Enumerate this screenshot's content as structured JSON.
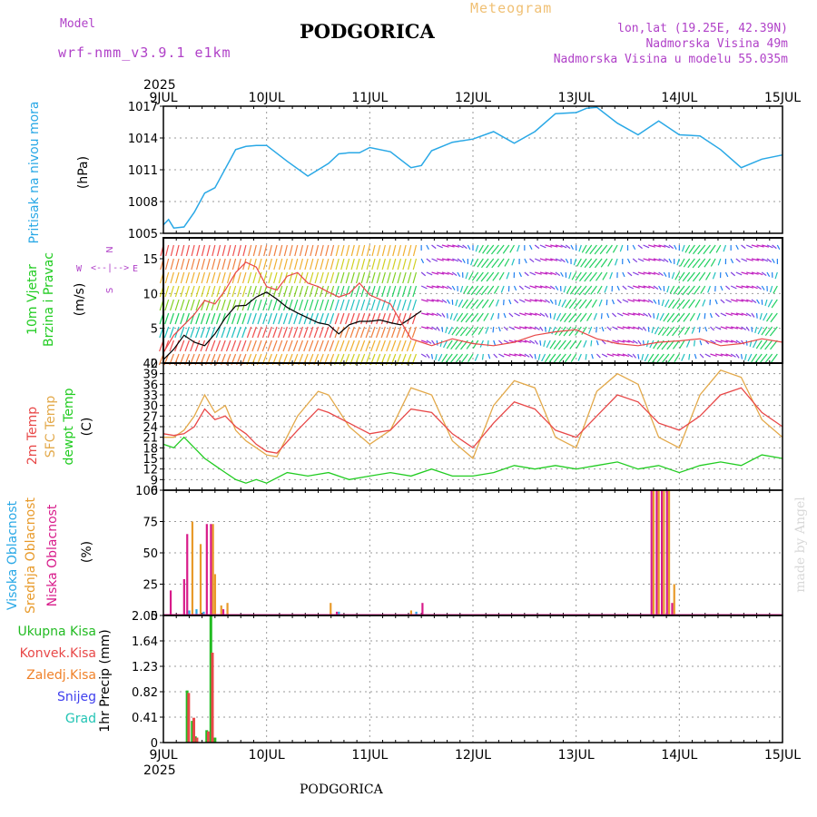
{
  "header": {
    "model_label": "Model",
    "model_name": "wrf-nmm_v3.9.1 e1km",
    "title": "PODGORICA",
    "subtitle": "Meteogram",
    "coords": "lon,lat (19.25E, 42.39N)",
    "elevation": "Nadmorska Visina 49m",
    "model_elevation": "Nadmorska Visina u modelu 55.035m",
    "footer_title": "PODGORICA",
    "credit": "made by Angel"
  },
  "colors": {
    "pressure": "#29a8e6",
    "wind_black": "#000000",
    "t2m": "#e84848",
    "tsfc": "#e3a94a",
    "dewpt": "#22cc22",
    "high_cloud": "#29a8e6",
    "mid_cloud": "#e89a2a",
    "low_cloud": "#d81b8a",
    "total_precip": "#22bb22",
    "conv_precip": "#e84848",
    "frozen_precip": "#f0822a",
    "snow": "#4040ee",
    "hail": "#22c4b4"
  },
  "time_axis": {
    "year": "2025",
    "labels": [
      "9JUL",
      "10JUL",
      "11JUL",
      "12JUL",
      "13JUL",
      "14JUL",
      "15JUL"
    ]
  },
  "chart_data": [
    {
      "type": "line",
      "panel": "pressure",
      "ylabel": "Pritisak na nivou mora",
      "unit": "(hPa)",
      "ylim": [
        1005,
        1017
      ],
      "yticks": [
        "1017",
        "1014",
        "1011",
        "1008",
        "1005"
      ],
      "grid": true,
      "series": [
        {
          "x": [
            0,
            0.05,
            0.1,
            0.2,
            0.3,
            0.4,
            0.5,
            0.6,
            0.7,
            0.8,
            0.9,
            1.0,
            1.2,
            1.4,
            1.6,
            1.7,
            1.8,
            1.9,
            2.0,
            2.2,
            2.4,
            2.5,
            2.6,
            2.8,
            3.0,
            3.2,
            3.4,
            3.6,
            3.8,
            4.0,
            4.1,
            4.2,
            4.4,
            4.6,
            4.8,
            5.0,
            5.2,
            5.4,
            5.6,
            5.8,
            6.0
          ],
          "values": [
            1005.8,
            1006.3,
            1005.5,
            1005.6,
            1007.0,
            1008.8,
            1009.3,
            1011.1,
            1012.9,
            1013.2,
            1013.3,
            1013.3,
            1011.8,
            1010.4,
            1011.6,
            1012.5,
            1012.6,
            1012.6,
            1013.1,
            1012.7,
            1011.2,
            1011.4,
            1012.8,
            1013.6,
            1013.9,
            1014.6,
            1013.5,
            1014.6,
            1016.3,
            1016.4,
            1016.8,
            1016.9,
            1015.4,
            1014.3,
            1015.6,
            1014.3,
            1014.2,
            1012.9,
            1011.2,
            1012.0,
            1012.4
          ]
        }
      ]
    },
    {
      "type": "line",
      "panel": "wind",
      "ylabel": "10m Vjetar",
      "ylabel2": "Brzina i Pravac",
      "unit": "(m/s)",
      "ylim": [
        0,
        18
      ],
      "yticks": [
        "15",
        "10",
        "5",
        "0"
      ],
      "compass": {
        "n": "N",
        "s": "S",
        "w": "W",
        "e": "E",
        "arrow": "<--|-->"
      },
      "grid": true,
      "series": [
        {
          "name": "speed",
          "x": [
            0,
            0.1,
            0.2,
            0.3,
            0.4,
            0.5,
            0.6,
            0.7,
            0.8,
            0.9,
            1.0,
            1.1,
            1.2,
            1.3,
            1.4,
            1.5,
            1.6,
            1.7,
            1.8,
            1.9,
            2.0,
            2.1,
            2.2,
            2.3,
            2.4,
            2.5
          ],
          "values": [
            0.5,
            2.0,
            4.0,
            3.0,
            2.5,
            4.2,
            6.5,
            8.2,
            8.3,
            9.5,
            10.2,
            9.2,
            8.0,
            7.2,
            6.5,
            5.8,
            5.5,
            4.2,
            5.5,
            6.0,
            6.0,
            6.2,
            5.8,
            5.5,
            6.5,
            7.5
          ]
        },
        {
          "name": "gust",
          "x": [
            0,
            0.1,
            0.2,
            0.3,
            0.4,
            0.5,
            0.6,
            0.7,
            0.8,
            0.9,
            1.0,
            1.1,
            1.2,
            1.3,
            1.4,
            1.5,
            1.6,
            1.7,
            1.8,
            1.9,
            2.0,
            2.2,
            2.4,
            2.5,
            2.6,
            2.8,
            3.0,
            3.2,
            3.4,
            3.6,
            3.8,
            4.0,
            4.2,
            4.4,
            4.6,
            4.8,
            5.0,
            5.2,
            5.4,
            5.6,
            5.8,
            6.0
          ],
          "values": [
            1.5,
            4.0,
            5.5,
            7.0,
            9.0,
            8.5,
            10.5,
            13.0,
            14.5,
            13.8,
            11.0,
            10.5,
            12.5,
            13.0,
            11.5,
            11.0,
            10.2,
            9.5,
            10.0,
            11.5,
            9.8,
            8.5,
            3.5,
            3.0,
            2.5,
            3.5,
            2.8,
            2.5,
            3.0,
            4.0,
            4.5,
            4.8,
            3.5,
            2.8,
            2.5,
            3.0,
            3.2,
            3.5,
            2.5,
            2.8,
            3.5,
            3.0
          ]
        }
      ]
    },
    {
      "type": "line",
      "panel": "temperature",
      "ylabel": "2m Temp",
      "ylabel2": "SFC Temp",
      "ylabel3": "dewpt Temp",
      "unit": "(C)",
      "ylim": [
        6,
        42
      ],
      "yticks": [
        "42",
        "39",
        "36",
        "33",
        "30",
        "27",
        "24",
        "21",
        "18",
        "15",
        "12",
        "9",
        "6"
      ],
      "grid": true,
      "series": [
        {
          "name": "t2m",
          "x": [
            0,
            0.1,
            0.2,
            0.3,
            0.4,
            0.5,
            0.6,
            0.7,
            0.8,
            0.9,
            1.0,
            1.1,
            1.3,
            1.5,
            1.6,
            1.8,
            2.0,
            2.2,
            2.4,
            2.6,
            2.8,
            3.0,
            3.2,
            3.4,
            3.6,
            3.8,
            4.0,
            4.2,
            4.4,
            4.6,
            4.8,
            5.0,
            5.2,
            5.4,
            5.6,
            5.8,
            6.0
          ],
          "values": [
            22,
            21.5,
            22,
            24,
            29,
            26,
            27,
            24,
            22,
            19,
            17,
            16.5,
            23,
            29,
            28,
            25,
            22,
            23,
            29,
            28,
            22,
            18,
            25,
            31,
            29,
            23,
            21,
            27,
            33,
            31,
            25,
            23,
            27,
            33,
            35,
            28,
            24
          ]
        },
        {
          "name": "tsfc",
          "x": [
            0,
            0.1,
            0.2,
            0.3,
            0.4,
            0.5,
            0.6,
            0.7,
            0.8,
            0.9,
            1.0,
            1.1,
            1.3,
            1.5,
            1.6,
            1.8,
            2.0,
            2.2,
            2.4,
            2.6,
            2.8,
            3.0,
            3.2,
            3.4,
            3.6,
            3.8,
            4.0,
            4.2,
            4.4,
            4.6,
            4.8,
            5.0,
            5.2,
            5.4,
            5.6,
            5.8,
            6.0
          ],
          "values": [
            21,
            21,
            23,
            27,
            33,
            28,
            30,
            23,
            20,
            18,
            16,
            15.5,
            27,
            34,
            33,
            24,
            19,
            23,
            35,
            33,
            20,
            15,
            30,
            37,
            35,
            21,
            18,
            34,
            39,
            36,
            21,
            18,
            33,
            40,
            38,
            26,
            21
          ]
        },
        {
          "name": "dewpt",
          "x": [
            0,
            0.1,
            0.2,
            0.3,
            0.4,
            0.5,
            0.6,
            0.7,
            0.8,
            0.9,
            1.0,
            1.2,
            1.4,
            1.6,
            1.8,
            2.0,
            2.2,
            2.4,
            2.6,
            2.8,
            3.0,
            3.2,
            3.4,
            3.6,
            3.8,
            4.0,
            4.2,
            4.4,
            4.6,
            4.8,
            5.0,
            5.2,
            5.4,
            5.6,
            5.8,
            6.0
          ],
          "values": [
            19,
            18,
            21,
            18,
            15,
            13,
            11,
            9,
            8,
            9,
            8,
            11,
            10,
            11,
            9,
            10,
            11,
            10,
            12,
            10,
            10,
            11,
            13,
            12,
            13,
            12,
            13,
            14,
            12,
            13,
            11,
            13,
            14,
            13,
            16,
            15
          ]
        }
      ]
    },
    {
      "type": "bar",
      "panel": "clouds",
      "ylabel": "Visoka Oblacnost",
      "ylabel2": "Srednja Oblacnost",
      "ylabel3": "Niska Oblacnost",
      "unit": "(%)",
      "ylim": [
        0,
        100
      ],
      "yticks": [
        "100",
        "75",
        "50",
        "25",
        "0"
      ],
      "grid": true,
      "series": [
        {
          "name": "low",
          "x": [
            0.07,
            0.2,
            0.23,
            0.42,
            0.46,
            0.58,
            1.68,
            2.51,
            4.73,
            4.78,
            4.83,
            4.88,
            4.93
          ],
          "values": [
            20,
            29,
            65,
            73,
            73,
            5,
            3,
            10,
            100,
            100,
            100,
            100,
            10
          ]
        },
        {
          "name": "mid",
          "x": [
            0.28,
            0.36,
            0.44,
            0.48,
            0.5,
            0.56,
            0.62,
            1.62,
            2.4,
            4.75,
            4.8,
            4.85,
            4.9,
            4.95
          ],
          "values": [
            75,
            57,
            0,
            73,
            33,
            8,
            10,
            10,
            4,
            100,
            100,
            100,
            100,
            25
          ]
        },
        {
          "name": "high",
          "x": [
            0.25,
            0.32,
            0.39,
            1.7,
            2.45
          ],
          "values": [
            4,
            5,
            3,
            3,
            3
          ]
        }
      ]
    },
    {
      "type": "bar",
      "panel": "precip",
      "legend": [
        "Ukupna Kisa",
        "Konvek.Kisa",
        "Zaledj.Kisa",
        "Snijeg",
        "Grad"
      ],
      "ylabel": "1hr Precip (mm)",
      "ylim": [
        0,
        2.05
      ],
      "yticks": [
        "2.05",
        "1.64",
        "1.23",
        "0.82",
        "0.41",
        "0"
      ],
      "grid": true,
      "series": [
        {
          "name": "total",
          "x": [
            0.23,
            0.28,
            0.31,
            0.42,
            0.46,
            0.5
          ],
          "values": [
            0.84,
            0.35,
            0.1,
            0.2,
            2.05,
            0.08
          ]
        },
        {
          "name": "convective",
          "x": [
            0.245,
            0.295,
            0.325,
            0.435,
            0.475
          ],
          "values": [
            0.8,
            0.4,
            0.08,
            0.18,
            1.45
          ]
        }
      ]
    }
  ]
}
